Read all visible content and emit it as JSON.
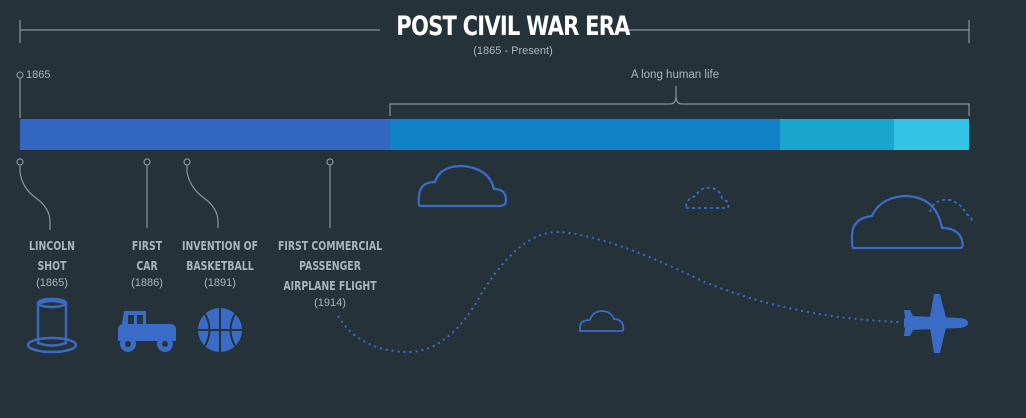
{
  "header": {
    "title": "POST CIVIL WAR ERA",
    "subtitle": "(1865 - Present)"
  },
  "timeline": {
    "start_label": "1865",
    "range_label": "A long human life",
    "segment_colors": [
      "#3366c1",
      "#1081c4",
      "#1aa5cf",
      "#33c3e5"
    ]
  },
  "events": [
    {
      "name_lines": [
        "LINCOLN",
        "SHOT"
      ],
      "year": "(1865)",
      "icon": "top-hat-icon"
    },
    {
      "name_lines": [
        "FIRST",
        "CAR"
      ],
      "year": "(1886)",
      "icon": "car-icon"
    },
    {
      "name_lines": [
        "INVENTION OF",
        "BASKETBALL"
      ],
      "year": "(1891)",
      "icon": "basketball-icon"
    },
    {
      "name_lines": [
        "FIRST COMMERCIAL",
        "PASSENGER",
        "AIRPLANE FLIGHT"
      ],
      "year": "(1914)",
      "icon": "airplane-icon"
    }
  ],
  "colors": {
    "background": "#26323a",
    "line": "#8a969e",
    "icon_blue": "#3a6cc7",
    "text": "#aab6be"
  }
}
